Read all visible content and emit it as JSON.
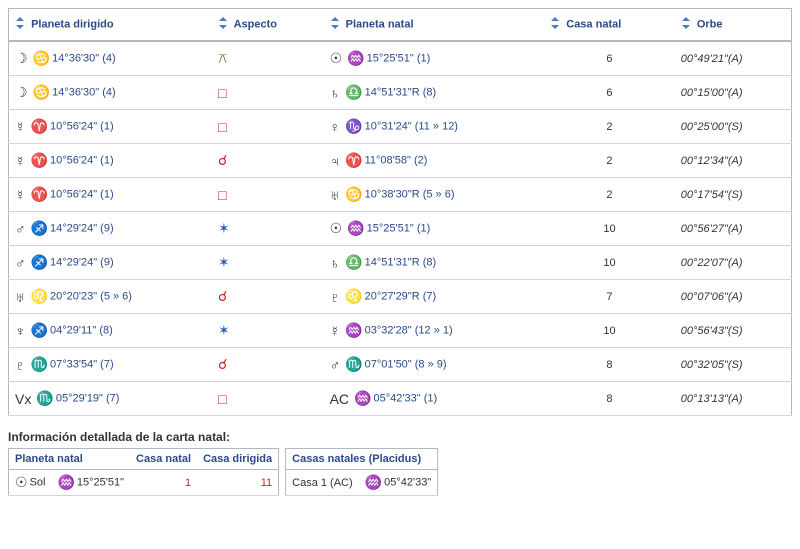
{
  "columns": {
    "c1": "Planeta dirigido",
    "c2": "Aspecto",
    "c3": "Planeta natal",
    "c4": "Casa natal",
    "c5": "Orbe"
  },
  "rows": [
    {
      "p1_glyph": "☽",
      "p1_sign": "♋",
      "p1_pos": "14°36'30\" (4)",
      "asp": "⚻",
      "asp_color": "aspect-green",
      "p2_glyph": "☉",
      "p2_sign": "♒",
      "p2_pos": "15°25'51\" (1)",
      "casa": "6",
      "orbe": "00°49'21\"(A)"
    },
    {
      "p1_glyph": "☽",
      "p1_sign": "♋",
      "p1_pos": "14°36'30\" (4)",
      "asp": "□",
      "asp_color": "aspect-red",
      "p2_glyph": "♄",
      "p2_sign": "♎",
      "p2_pos": "14°51'31\"R (8)",
      "casa": "6",
      "orbe": "00°15'00\"(A)"
    },
    {
      "p1_glyph": "☿",
      "p1_sign": "♈",
      "p1_pos": "10°56'24\" (1)",
      "asp": "□",
      "asp_color": "aspect-red",
      "p2_glyph": "♀",
      "p2_sign": "♑",
      "p2_pos": "10°31'24\" (11 » 12)",
      "casa": "2",
      "orbe": "00°25'00\"(S)"
    },
    {
      "p1_glyph": "☿",
      "p1_sign": "♈",
      "p1_pos": "10°56'24\" (1)",
      "asp": "☌",
      "asp_color": "aspect-red",
      "p2_glyph": "♃",
      "p2_sign": "♈",
      "p2_pos": "11°08'58\" (2)",
      "casa": "2",
      "orbe": "00°12'34\"(A)"
    },
    {
      "p1_glyph": "☿",
      "p1_sign": "♈",
      "p1_pos": "10°56'24\" (1)",
      "asp": "□",
      "asp_color": "aspect-red",
      "p2_glyph": "♅",
      "p2_sign": "♋",
      "p2_pos": "10°38'30\"R (5 » 6)",
      "casa": "2",
      "orbe": "00°17'54\"(S)"
    },
    {
      "p1_glyph": "♂",
      "p1_sign": "♐",
      "p1_pos": "14°29'24\" (9)",
      "asp": "✶",
      "asp_color": "aspect-blue",
      "p2_glyph": "☉",
      "p2_sign": "♒",
      "p2_pos": "15°25'51\" (1)",
      "casa": "10",
      "orbe": "00°56'27\"(A)"
    },
    {
      "p1_glyph": "♂",
      "p1_sign": "♐",
      "p1_pos": "14°29'24\" (9)",
      "asp": "✶",
      "asp_color": "aspect-blue",
      "p2_glyph": "♄",
      "p2_sign": "♎",
      "p2_pos": "14°51'31\"R (8)",
      "casa": "10",
      "orbe": "00°22'07\"(A)"
    },
    {
      "p1_glyph": "♅",
      "p1_sign": "♌",
      "p1_pos": "20°20'23\" (5 » 6)",
      "asp": "☌",
      "asp_color": "aspect-red",
      "p2_glyph": "♇",
      "p2_sign": "♌",
      "p2_pos": "20°27'29\"R (7)",
      "casa": "7",
      "orbe": "00°07'06\"(A)"
    },
    {
      "p1_glyph": "♆",
      "p1_sign": "♐",
      "p1_pos": "04°29'11\" (8)",
      "asp": "✶",
      "asp_color": "aspect-blue",
      "p2_glyph": "☿",
      "p2_sign": "♒",
      "p2_pos": "03°32'28\" (12 » 1)",
      "casa": "10",
      "orbe": "00°56'43\"(S)"
    },
    {
      "p1_glyph": "♇",
      "p1_sign": "♏",
      "p1_pos": "07°33'54\" (7)",
      "asp": "☌",
      "asp_color": "aspect-red",
      "p2_glyph": "♂",
      "p2_sign": "♏",
      "p2_pos": "07°01'50\" (8 » 9)",
      "casa": "8",
      "orbe": "00°32'05\"(S)"
    },
    {
      "p1_glyph": "Vx",
      "p1_sign": "♏",
      "p1_pos": "05°29'19\" (7)",
      "asp": "□",
      "asp_color": "aspect-red",
      "p2_glyph": "AC",
      "p2_sign": "♒",
      "p2_pos": "05°42'33\" (1)",
      "casa": "8",
      "orbe": "00°13'13\"(A)"
    }
  ],
  "section_heading": "Información detallada de la carta natal:",
  "natal": {
    "h1": "Planeta natal",
    "h2": "Casa natal",
    "h3": "Casa dirigida",
    "row1_glyph": "☉",
    "row1_label": "Sol",
    "row1_sign": "♒",
    "row1_pos": "15°25'51\"",
    "row1_casa_natal": "1",
    "row1_casa_dir": "11"
  },
  "houses": {
    "title": "Casas natales (Placidus)",
    "row1_label": "Casa 1 (AC)",
    "row1_sign": "♒",
    "row1_pos": "05°42'33\""
  }
}
